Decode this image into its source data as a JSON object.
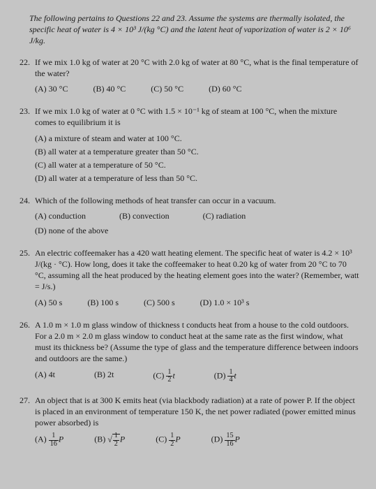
{
  "intro": "The following pertains to Questions 22 and 23. Assume the systems are thermally isolated, the specific heat of water is 4 × 10³ J/(kg °C) and the latent heat of vaporization of water is 2 × 10⁶ J/kg.",
  "q22": {
    "num": "22.",
    "text": "If we mix 1.0 kg of water at 20 °C with 2.0 kg of water at 80 °C, what is the final temperature of the water?",
    "a": "(A) 30 °C",
    "b": "(B) 40 °C",
    "c": "(C) 50 °C",
    "d": "(D) 60 °C"
  },
  "q23": {
    "num": "23.",
    "text": "If we mix 1.0 kg of water at 0 °C with 1.5 × 10⁻¹ kg of steam at 100 °C, when the mixture comes to equilibrium it is",
    "a": "(A)  a mixture of steam and water at 100 °C.",
    "b": "(B)  all water at a temperature greater than 50 °C.",
    "c": "(C)  all water at a temperature of 50 °C.",
    "d": "(D)  all water at a temperature of less than 50 °C."
  },
  "q24": {
    "num": "24.",
    "text": "Which of the following methods of heat transfer can occur in a vacuum.",
    "a": "(A) conduction",
    "b": "(B) convection",
    "c": "(C) radiation",
    "d": "(D) none of the above"
  },
  "q25": {
    "num": "25.",
    "text": "An electric coffeemaker has a 420 watt heating element. The specific heat of water is 4.2 × 10³ J/(kg · °C). How long, does it take the coffeemaker to heat 0.20 kg of water from 20 °C to 70 °C, assuming all the heat produced by the heating element goes into the water? (Remember, watt = J/s.)",
    "a": "(A) 50 s",
    "b": "(B) 100 s",
    "c": "(C) 500 s",
    "d": "(D) 1.0 × 10³ s"
  },
  "q26": {
    "num": "26.",
    "text": "A 1.0 m × 1.0 m glass window of thickness t conducts heat from a house to the cold outdoors. For a 2.0 m × 2.0 m glass window to conduct heat at the same rate as the first window, what must its thickness be? (Assume the type of glass and the temperature difference between indoors and outdoors are the same.)",
    "a": "(A) 4t",
    "b": "(B) 2t",
    "cl": "(C)",
    "dl": "(D)"
  },
  "q27": {
    "num": "27.",
    "text": "An object that is at 300 K emits heat (via blackbody radiation) at a rate of power P. If the object is placed in an environment of temperature 150 K, the net power radiated (power emitted minus power absorbed) is",
    "al": "(A)",
    "bl": "(B)",
    "cl": "(C)",
    "dl": "(D)"
  }
}
